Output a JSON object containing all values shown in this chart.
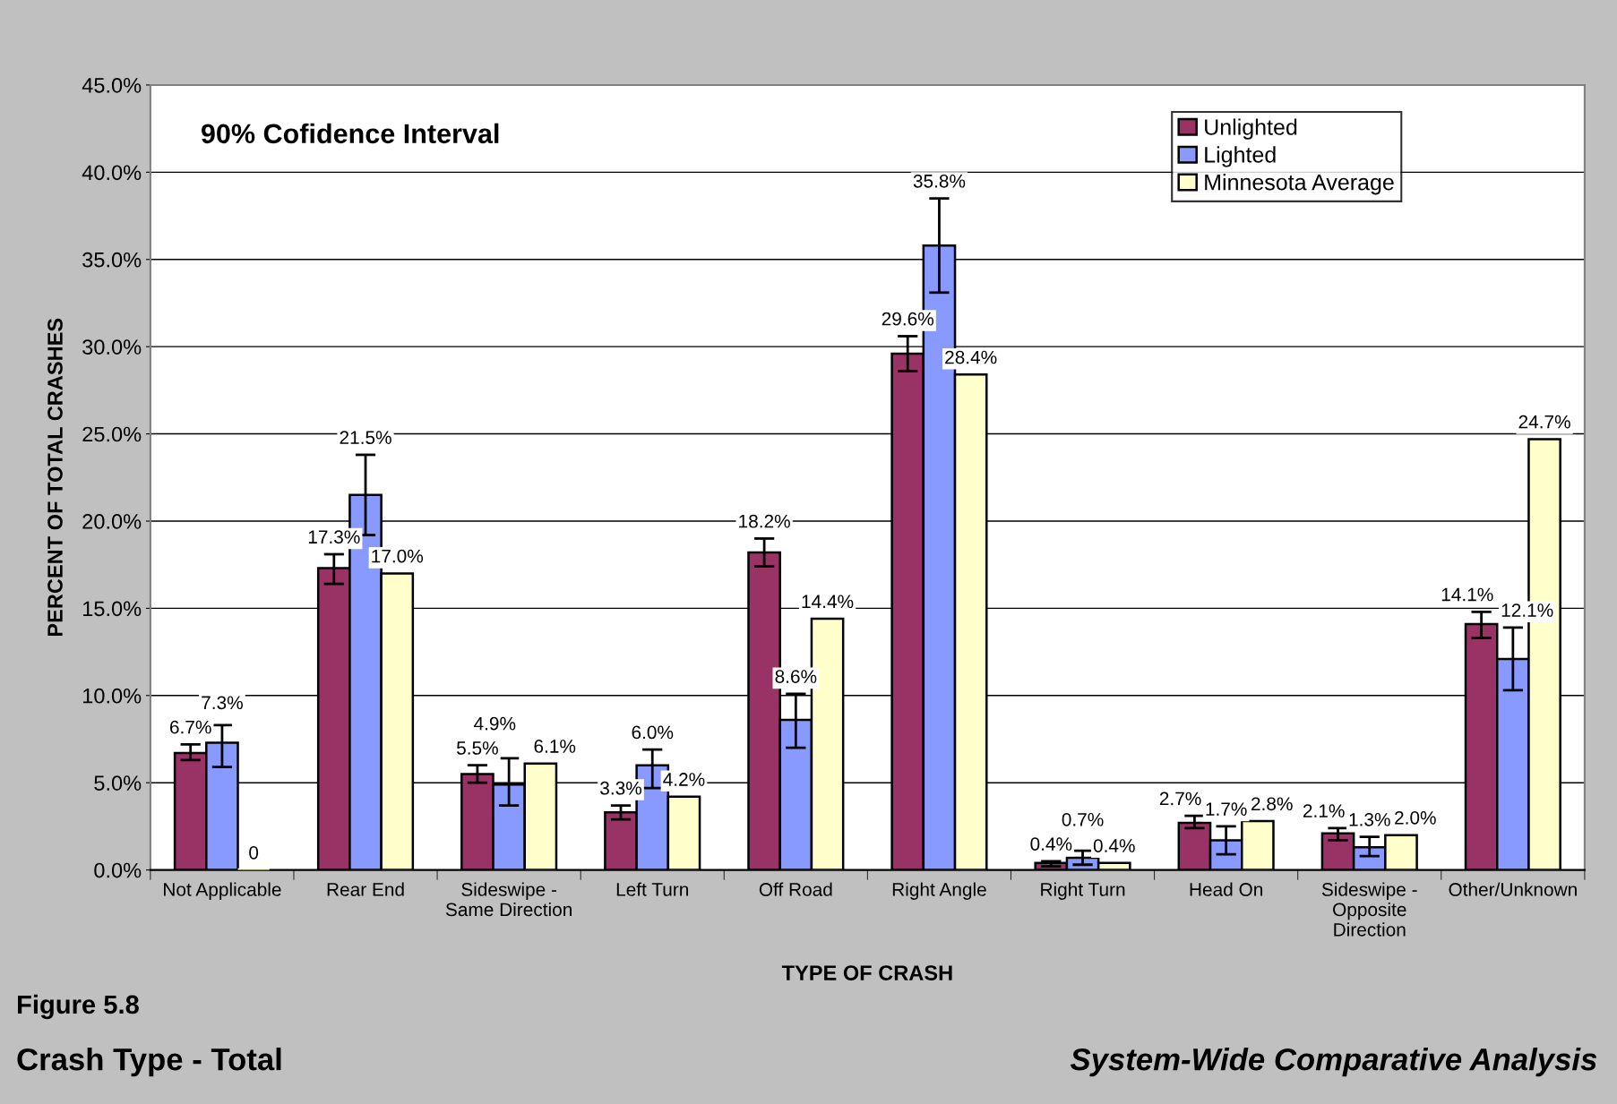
{
  "chart_data": {
    "type": "bar",
    "title": "Crash Type - Total",
    "subtitle": "Figure 5.8",
    "xlabel": "TYPE OF CRASH",
    "ylabel": "PERCENT OF TOTAL CRASHES",
    "annotations": [
      "90% Cofidence Interval",
      "System-Wide Comparative Analysis"
    ],
    "categories": [
      "Not Applicable",
      "Rear End",
      "Sideswipe -\nSame Direction",
      "Left Turn",
      "Off Road",
      "Right Angle",
      "Right Turn",
      "Head On",
      "Sideswipe -\nOpposite\nDirection",
      "Other/Unknown"
    ],
    "series": [
      {
        "name": "Unlighted",
        "color": "#993366",
        "values": [
          6.7,
          17.3,
          5.5,
          3.3,
          18.2,
          29.6,
          0.4,
          2.7,
          2.1,
          14.1
        ],
        "value_labels": [
          "6.7%",
          "17.3%",
          "5.5%",
          "3.3%",
          "18.2%",
          "29.6%",
          "0.4%",
          "2.7%",
          "2.1%",
          "14.1%"
        ],
        "errors": [
          [
            6.3,
            7.2
          ],
          [
            16.4,
            18.1
          ],
          [
            5.0,
            6.0
          ],
          [
            2.9,
            3.7
          ],
          [
            17.4,
            19.0
          ],
          [
            28.6,
            30.6
          ],
          [
            0.2,
            0.5
          ],
          [
            2.4,
            3.1
          ],
          [
            1.7,
            2.4
          ],
          [
            13.3,
            14.8
          ]
        ]
      },
      {
        "name": "Lighted",
        "color": "#8899ff",
        "values": [
          7.3,
          21.5,
          4.9,
          6.0,
          8.6,
          35.8,
          0.7,
          1.7,
          1.3,
          12.1
        ],
        "value_labels": [
          "7.3%",
          "21.5%",
          "4.9%",
          "6.0%",
          "8.6%",
          "35.8%",
          "0.7%",
          "1.7%",
          "1.3%",
          "12.1%"
        ],
        "errors": [
          [
            5.9,
            8.3
          ],
          [
            19.2,
            23.8
          ],
          [
            3.7,
            6.4
          ],
          [
            4.7,
            6.9
          ],
          [
            7.0,
            10.1
          ],
          [
            33.1,
            38.5
          ],
          [
            0.3,
            1.1
          ],
          [
            0.9,
            2.5
          ],
          [
            0.8,
            1.9
          ],
          [
            10.3,
            13.9
          ]
        ]
      },
      {
        "name": "Minnesota Average",
        "color": "#ffffcc",
        "values": [
          0,
          17.0,
          6.1,
          4.2,
          14.4,
          28.4,
          0.4,
          2.8,
          2.0,
          24.7
        ],
        "value_labels": [
          "0",
          "17.0%",
          "6.1%",
          "4.2%",
          "14.4%",
          "28.4%",
          "0.4%",
          "2.8%",
          "2.0%",
          "24.7%"
        ]
      }
    ],
    "ylim": [
      0,
      45
    ],
    "yticks": [
      {
        "value": 0,
        "label": "0.0%"
      },
      {
        "value": 5,
        "label": "5.0%"
      },
      {
        "value": 10,
        "label": "10.0%"
      },
      {
        "value": 15,
        "label": "15.0%"
      },
      {
        "value": 20,
        "label": "20.0%"
      },
      {
        "value": 25,
        "label": "25.0%"
      },
      {
        "value": 30,
        "label": "30.0%"
      },
      {
        "value": 35,
        "label": "35.0%"
      },
      {
        "value": 40,
        "label": "40.0%"
      },
      {
        "value": 45,
        "label": "45.0%"
      }
    ],
    "grid": "y",
    "legend": "top right"
  }
}
